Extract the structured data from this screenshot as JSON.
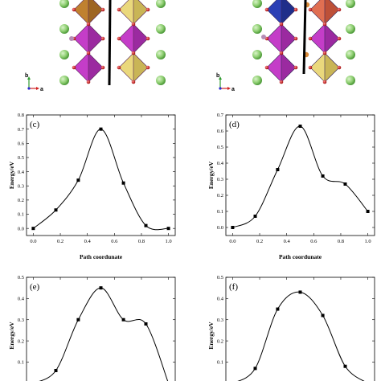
{
  "structure_views": [
    {
      "axis_labels": {
        "b": "b",
        "a": "a"
      }
    },
    {
      "axis_labels": {
        "b": "b",
        "a": "a"
      }
    }
  ],
  "colors": {
    "octa_brown": "#c0812f",
    "octa_yellow": "#ead87c",
    "octa_magenta": "#c43dc8",
    "octa_blue": "#2b3fb5",
    "octa_salmon": "#e06f52",
    "sphere_green": "#8fcf72",
    "oxygen_red": "#cc1f1f",
    "curve": "#000000"
  },
  "chart_data": [
    {
      "type": "line",
      "panel": "(c)",
      "title": "",
      "xlabel": "Path coordunate",
      "ylabel": "Energy/eV",
      "xlim": [
        -0.05,
        1.05
      ],
      "ylim": [
        -0.05,
        0.8
      ],
      "xticks": [
        0.0,
        0.2,
        0.4,
        0.6,
        0.8,
        1.0
      ],
      "yticks": [
        0.0,
        0.1,
        0.2,
        0.3,
        0.4,
        0.5,
        0.6,
        0.7,
        0.8
      ],
      "show_xticklabels": true,
      "series": [
        {
          "x": [
            0.0,
            0.167,
            0.333,
            0.5,
            0.667,
            0.833,
            1.0
          ],
          "y": [
            0.0,
            0.13,
            0.34,
            0.7,
            0.32,
            0.02,
            0.0
          ]
        }
      ]
    },
    {
      "type": "line",
      "panel": "(d)",
      "title": "",
      "xlabel": "Path coordunate",
      "ylabel": "Energy/eV",
      "xlim": [
        -0.05,
        1.05
      ],
      "ylim": [
        -0.05,
        0.7
      ],
      "xticks": [
        0.0,
        0.2,
        0.4,
        0.6,
        0.8,
        1.0
      ],
      "yticks": [
        0.0,
        0.1,
        0.2,
        0.3,
        0.4,
        0.5,
        0.6,
        0.7
      ],
      "show_xticklabels": true,
      "series": [
        {
          "x": [
            0.0,
            0.167,
            0.333,
            0.5,
            0.667,
            0.833,
            1.0
          ],
          "y": [
            0.0,
            0.07,
            0.36,
            0.63,
            0.32,
            0.27,
            0.1
          ]
        }
      ]
    },
    {
      "type": "line",
      "panel": "(e)",
      "title": "",
      "xlabel": "",
      "ylabel": "Energy/eV",
      "xlim": [
        -0.05,
        1.05
      ],
      "ylim": [
        -0.05,
        0.5
      ],
      "xticks": [
        0.0,
        0.2,
        0.4,
        0.6,
        0.8,
        1.0
      ],
      "yticks": [
        0.0,
        0.1,
        0.2,
        0.3,
        0.4,
        0.5
      ],
      "show_xticklabels": false,
      "series": [
        {
          "x": [
            0.0,
            0.167,
            0.333,
            0.5,
            0.667,
            0.833,
            1.0
          ],
          "y": [
            0.0,
            0.06,
            0.3,
            0.45,
            0.3,
            0.28,
            0.0
          ]
        }
      ]
    },
    {
      "type": "line",
      "panel": "(f)",
      "title": "",
      "xlabel": "",
      "ylabel": "Energy/eV",
      "xlim": [
        -0.05,
        1.05
      ],
      "ylim": [
        -0.05,
        0.5
      ],
      "xticks": [
        0.0,
        0.2,
        0.4,
        0.6,
        0.8,
        1.0
      ],
      "yticks": [
        0.0,
        0.1,
        0.2,
        0.3,
        0.4,
        0.5
      ],
      "show_xticklabels": false,
      "series": [
        {
          "x": [
            0.0,
            0.167,
            0.333,
            0.5,
            0.667,
            0.833,
            1.0
          ],
          "y": [
            0.0,
            0.07,
            0.35,
            0.43,
            0.32,
            0.08,
            0.0
          ]
        }
      ]
    }
  ]
}
